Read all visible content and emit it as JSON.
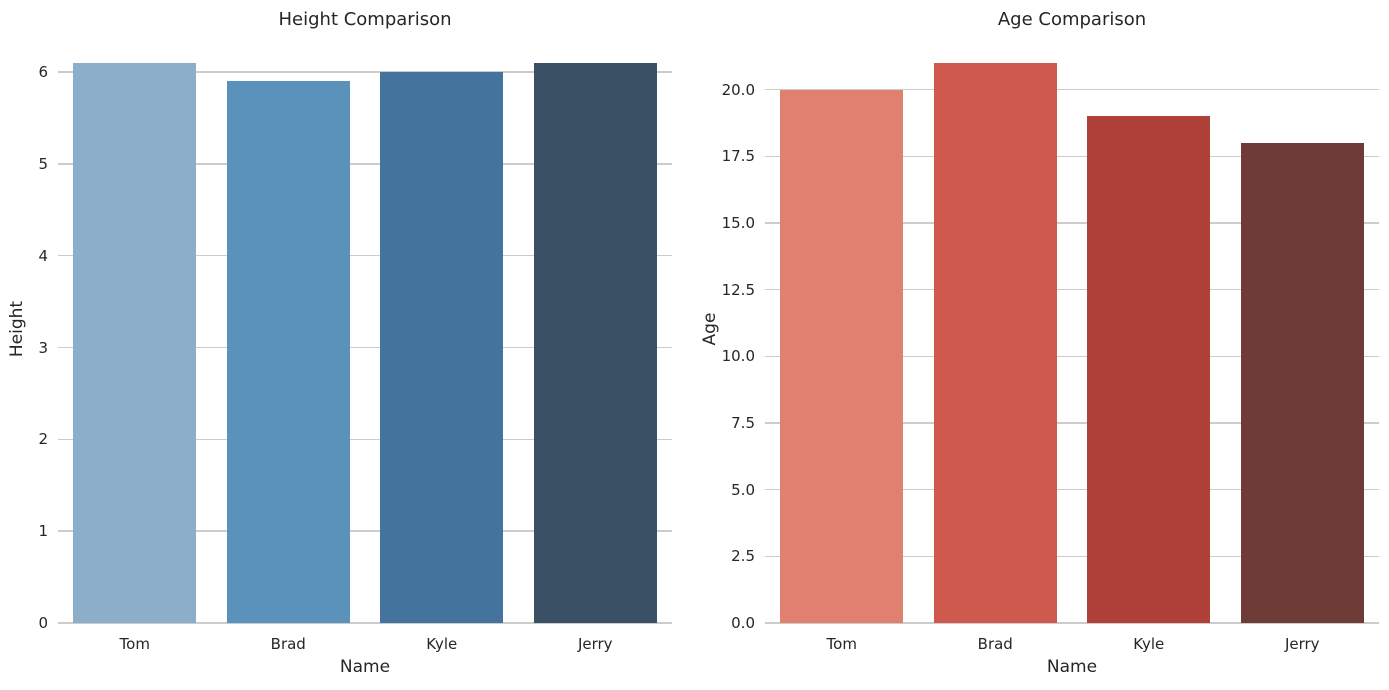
{
  "figure": {
    "background": "#ffffff",
    "text_color": "#262626",
    "grid_color": "#cccccc"
  },
  "chart_data": [
    {
      "type": "bar",
      "title": "Height Comparison",
      "xlabel": "Name",
      "ylabel": "Height",
      "categories": [
        "Tom",
        "Brad",
        "Kyle",
        "Jerry"
      ],
      "values": [
        6.1,
        5.9,
        6.0,
        6.1
      ],
      "ylim": [
        0,
        6.405
      ],
      "yticks": [
        0,
        1,
        2,
        3,
        4,
        5,
        6
      ],
      "ytick_labels": [
        "0",
        "1",
        "2",
        "3",
        "4",
        "5",
        "6"
      ],
      "grid": "horizontal",
      "legend": "none",
      "bar_colors": [
        "#8bafcb",
        "#5b92bc",
        "#44749d",
        "#3a5065"
      ]
    },
    {
      "type": "bar",
      "title": "Age Comparison",
      "xlabel": "Name",
      "ylabel": "Age",
      "categories": [
        "Tom",
        "Brad",
        "Kyle",
        "Jerry"
      ],
      "values": [
        20,
        21,
        19,
        18
      ],
      "ylim": [
        0,
        22.05
      ],
      "yticks": [
        0,
        2.5,
        5,
        7.5,
        10,
        12.5,
        15,
        17.5,
        20
      ],
      "ytick_labels": [
        "0.0",
        "2.5",
        "5.0",
        "7.5",
        "10.0",
        "12.5",
        "15.0",
        "17.5",
        "20.0"
      ],
      "grid": "horizontal",
      "legend": "none",
      "bar_colors": [
        "#df8070",
        "#d0594e",
        "#af4138",
        "#6f3b36"
      ]
    }
  ]
}
